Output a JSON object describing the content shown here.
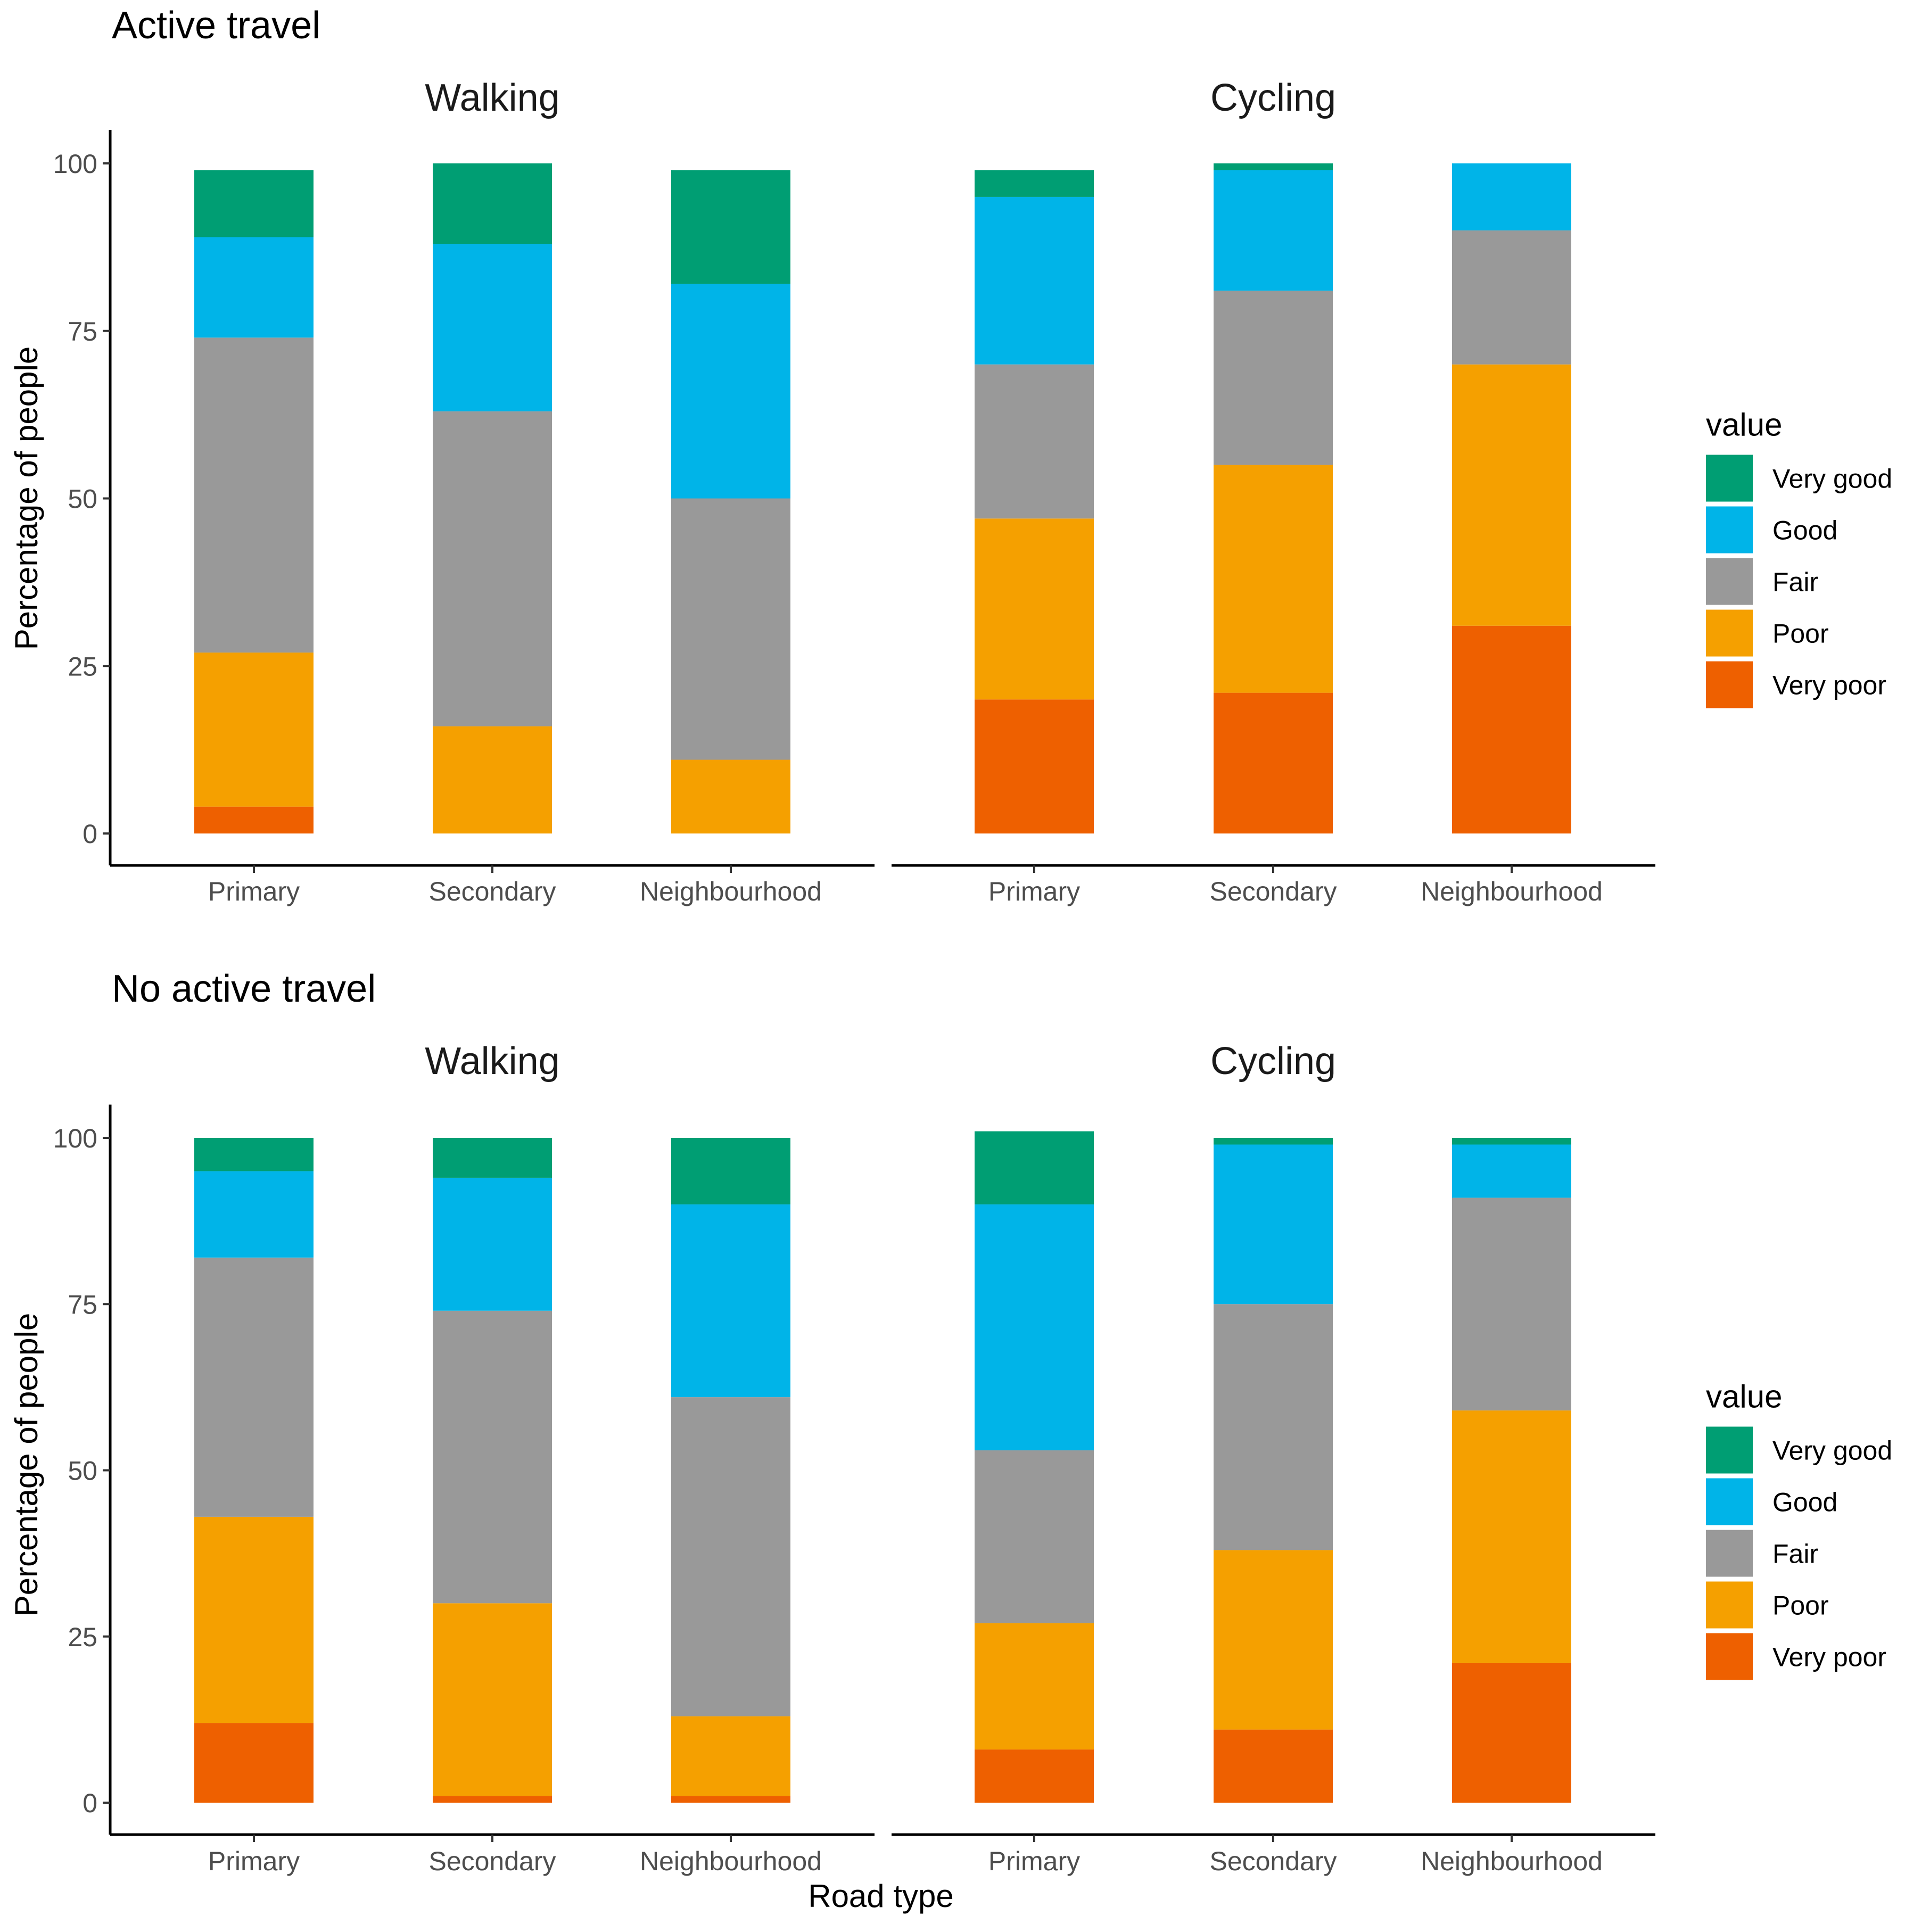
{
  "chart_data": {
    "type": "bar",
    "stacked": true,
    "xlabel": "Road type",
    "ylabel": "Percentage of people",
    "ylim": [
      0,
      100
    ],
    "yticks": [
      0,
      25,
      50,
      75,
      100
    ],
    "categories": [
      "Primary",
      "Secondary",
      "Neighbourhood"
    ],
    "legend": {
      "title": "value",
      "entries": [
        {
          "name": "Very good",
          "color": "#009E73"
        },
        {
          "name": "Good",
          "color": "#00B4E8"
        },
        {
          "name": "Fair",
          "color": "#999999"
        },
        {
          "name": "Poor",
          "color": "#F5A000"
        },
        {
          "name": "Very poor",
          "color": "#EE6000"
        }
      ]
    },
    "stack_order": [
      "Very poor",
      "Poor",
      "Fair",
      "Good",
      "Very good"
    ],
    "panels": [
      {
        "title": "Active travel",
        "facets": [
          {
            "title": "Walking",
            "series": [
              {
                "name": "Very poor",
                "values": [
                  4,
                  0,
                  0
                ]
              },
              {
                "name": "Poor",
                "values": [
                  23,
                  16,
                  11
                ]
              },
              {
                "name": "Fair",
                "values": [
                  47,
                  47,
                  39
                ]
              },
              {
                "name": "Good",
                "values": [
                  15,
                  25,
                  32
                ]
              },
              {
                "name": "Very good",
                "values": [
                  10,
                  12,
                  17
                ]
              }
            ]
          },
          {
            "title": "Cycling",
            "series": [
              {
                "name": "Very poor",
                "values": [
                  20,
                  21,
                  31
                ]
              },
              {
                "name": "Poor",
                "values": [
                  27,
                  34,
                  39
                ]
              },
              {
                "name": "Fair",
                "values": [
                  23,
                  26,
                  20
                ]
              },
              {
                "name": "Good",
                "values": [
                  25,
                  18,
                  10
                ]
              },
              {
                "name": "Very good",
                "values": [
                  4,
                  1,
                  0
                ]
              }
            ]
          }
        ]
      },
      {
        "title": "No active travel",
        "facets": [
          {
            "title": "Walking",
            "series": [
              {
                "name": "Very poor",
                "values": [
                  12,
                  1,
                  1
                ]
              },
              {
                "name": "Poor",
                "values": [
                  31,
                  29,
                  12
                ]
              },
              {
                "name": "Fair",
                "values": [
                  39,
                  44,
                  48
                ]
              },
              {
                "name": "Good",
                "values": [
                  13,
                  20,
                  29
                ]
              },
              {
                "name": "Very good",
                "values": [
                  5,
                  6,
                  10
                ]
              }
            ]
          },
          {
            "title": "Cycling",
            "series": [
              {
                "name": "Very poor",
                "values": [
                  8,
                  11,
                  21
                ]
              },
              {
                "name": "Poor",
                "values": [
                  19,
                  27,
                  38
                ]
              },
              {
                "name": "Fair",
                "values": [
                  26,
                  37,
                  32
                ]
              },
              {
                "name": "Good",
                "values": [
                  37,
                  24,
                  8
                ]
              },
              {
                "name": "Very good",
                "values": [
                  11,
                  1,
                  1
                ]
              }
            ]
          }
        ]
      }
    ]
  }
}
